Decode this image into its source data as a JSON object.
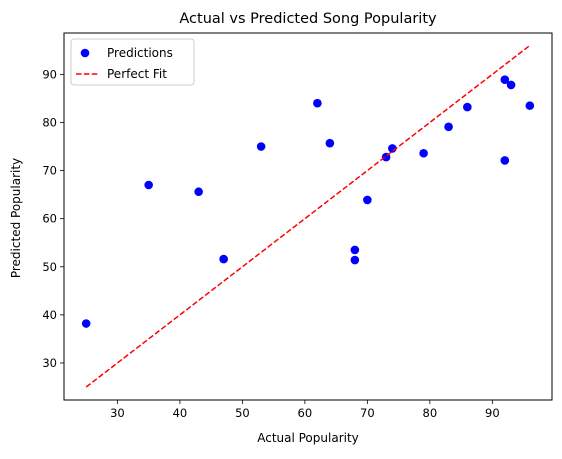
{
  "chart_data": {
    "type": "scatter",
    "title": "Actual vs Predicted Song Popularity",
    "xlabel": "Actual Popularity",
    "ylabel": "Predicted Popularity",
    "xlim": [
      21.45,
      99.55
    ],
    "ylim": [
      22.3,
      98.6
    ],
    "xticks": [
      30,
      40,
      50,
      60,
      70,
      80,
      90
    ],
    "yticks": [
      30,
      40,
      50,
      60,
      70,
      80,
      90
    ],
    "grid": false,
    "legend_position": "top-left",
    "series": [
      {
        "name": "Predictions",
        "marker": "circle",
        "color": "#0000ff",
        "points": [
          {
            "x": 25,
            "y": 38.2
          },
          {
            "x": 35,
            "y": 67.0
          },
          {
            "x": 43,
            "y": 65.6
          },
          {
            "x": 47,
            "y": 51.6
          },
          {
            "x": 53,
            "y": 75.0
          },
          {
            "x": 62,
            "y": 84.0
          },
          {
            "x": 64,
            "y": 75.7
          },
          {
            "x": 68,
            "y": 53.5
          },
          {
            "x": 68,
            "y": 51.4
          },
          {
            "x": 70,
            "y": 63.9
          },
          {
            "x": 73,
            "y": 72.8
          },
          {
            "x": 74,
            "y": 74.6
          },
          {
            "x": 79,
            "y": 73.6
          },
          {
            "x": 83,
            "y": 79.1
          },
          {
            "x": 86,
            "y": 83.2
          },
          {
            "x": 92,
            "y": 88.9
          },
          {
            "x": 92,
            "y": 72.1
          },
          {
            "x": 93,
            "y": 87.8
          },
          {
            "x": 96,
            "y": 83.5
          }
        ]
      },
      {
        "name": "Perfect Fit",
        "style": "dashed-line",
        "color": "#ff0000",
        "points": [
          {
            "x": 25,
            "y": 25
          },
          {
            "x": 96,
            "y": 96
          }
        ]
      }
    ]
  }
}
